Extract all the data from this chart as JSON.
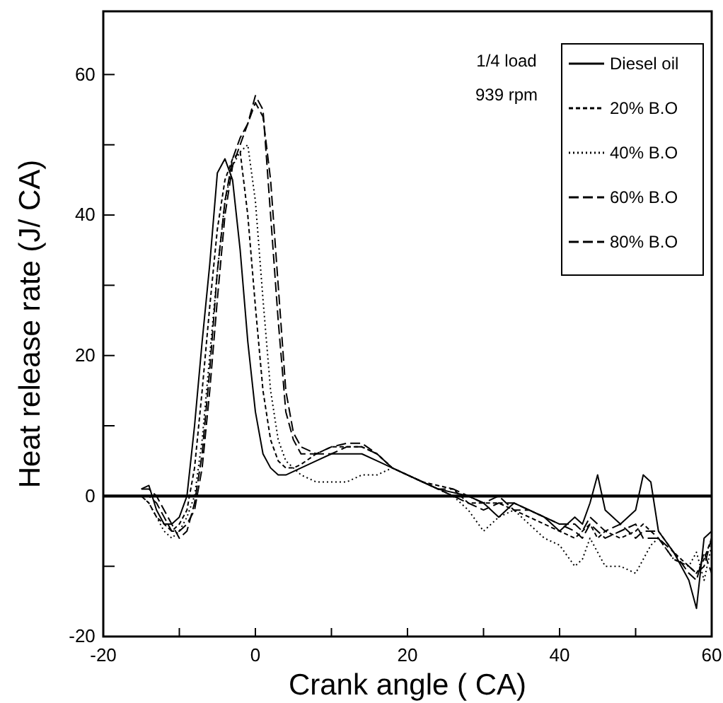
{
  "chart_data": {
    "type": "line",
    "xlabel": "Crank angle ( CA)",
    "ylabel": "Heat release rate (J/ CA)",
    "x": [
      -15,
      -14,
      -13,
      -12,
      -11,
      -10,
      -9,
      -8,
      -7,
      -6,
      -5,
      -4,
      -3,
      -2,
      -1,
      0,
      1,
      2,
      3,
      4,
      5,
      6,
      8,
      10,
      12,
      14,
      16,
      18,
      20,
      22,
      24,
      26,
      28,
      30,
      32,
      34,
      36,
      38,
      40,
      42,
      43,
      44,
      45,
      46,
      48,
      50,
      51,
      52,
      53,
      55,
      57,
      58,
      59,
      60
    ],
    "xlim": [
      -20,
      60
    ],
    "xticks": [
      -20,
      {
        "value": -10,
        "label": null
      },
      0,
      {
        "value": 10,
        "label": null
      },
      20,
      {
        "value": 30,
        "label": null
      },
      40,
      {
        "value": 50,
        "label": null
      },
      60
    ],
    "ylim": [
      -20,
      69
    ],
    "yticks": [
      -20,
      {
        "value": -10,
        "label": null
      },
      0,
      {
        "value": 10,
        "label": null
      },
      20,
      {
        "value": 30,
        "label": null
      },
      40,
      {
        "value": 50,
        "label": null
      },
      60
    ],
    "grid": false,
    "legend": "top right",
    "marker": "none",
    "ref_lines": [
      {
        "axis": "y",
        "value": 0,
        "label": null
      }
    ],
    "annotations": [
      "1/4 load",
      "939 rpm"
    ],
    "series": [
      {
        "name": "Diesel oil",
        "color": "#000000",
        "line_style": "solid",
        "values": [
          1,
          1.5,
          -2,
          -4,
          -4,
          -3,
          0,
          10,
          22,
          33,
          46,
          48,
          45,
          35,
          22,
          12,
          6,
          4,
          3,
          3,
          3.5,
          4,
          5,
          6,
          6,
          6,
          5,
          4,
          3,
          2,
          1,
          0.5,
          0,
          -1,
          -3,
          -1,
          -2,
          -3,
          -5,
          -3,
          -4,
          -1,
          3,
          -2,
          -4,
          -2,
          3,
          2,
          -5,
          -8,
          -12,
          -16,
          -6,
          -5
        ]
      },
      {
        "name": "20% B.O",
        "color": "#000000",
        "line_style": "dashed",
        "values": [
          0,
          -1,
          -3,
          -4,
          -5,
          -4,
          -2,
          4,
          15,
          27,
          38,
          45,
          48,
          49,
          40,
          27,
          15,
          8,
          5,
          4,
          4,
          4.5,
          6,
          7,
          7,
          7,
          6,
          4,
          3,
          2,
          1.5,
          1,
          -1,
          -1,
          -1,
          -2,
          -3,
          -4,
          -5,
          -6,
          -5,
          -4,
          -6,
          -5,
          -6,
          -5,
          -4,
          -5,
          -5,
          -8,
          -10,
          -11,
          -9,
          -6
        ]
      },
      {
        "name": "40% B.O",
        "color": "#000000",
        "line_style": "dotted",
        "values": [
          0,
          -1,
          -3,
          -5,
          -6,
          -5,
          -3,
          0,
          8,
          20,
          32,
          42,
          47,
          49,
          50,
          42,
          28,
          15,
          8,
          5,
          4,
          3,
          2,
          2,
          2,
          3,
          3,
          4,
          3,
          2,
          1,
          0,
          -2,
          -5,
          -3,
          -2,
          -4,
          -6,
          -7,
          -10,
          -9,
          -6,
          -8,
          -10,
          -10,
          -11,
          -9,
          -7,
          -6,
          -9,
          -10,
          -8,
          -12,
          -7
        ]
      },
      {
        "name": "60% B.O",
        "color": "#000000",
        "line_style": "dashed",
        "values": [
          0,
          0,
          -1,
          -3,
          -5,
          -5,
          -4,
          -2,
          4,
          15,
          28,
          40,
          47,
          50,
          53,
          57,
          55,
          40,
          25,
          12,
          8,
          6,
          6,
          7,
          7.5,
          7.5,
          6,
          4,
          3,
          2,
          1,
          1,
          0,
          -1,
          0,
          -2,
          -2,
          -3,
          -4,
          -5,
          -6,
          -4,
          -5,
          -6,
          -5,
          -4,
          -6,
          -6,
          -6,
          -8,
          -11,
          -12,
          -8,
          -11
        ]
      },
      {
        "name": "80% B.O",
        "color": "#000000",
        "line_style": "dashed",
        "values": [
          1,
          1,
          0,
          -2,
          -4,
          -6,
          -5,
          -1,
          6,
          18,
          32,
          42,
          48,
          51,
          53,
          56,
          54,
          45,
          30,
          15,
          9,
          7,
          6,
          6,
          7,
          7,
          6,
          4,
          3,
          2,
          1,
          0,
          -1,
          -2,
          -1,
          -1,
          -2,
          -3,
          -4,
          -4,
          -5,
          -3,
          -4,
          -5,
          -4,
          -6,
          -5,
          -5,
          -6,
          -9,
          -10,
          -11,
          -10,
          -6
        ]
      }
    ]
  }
}
